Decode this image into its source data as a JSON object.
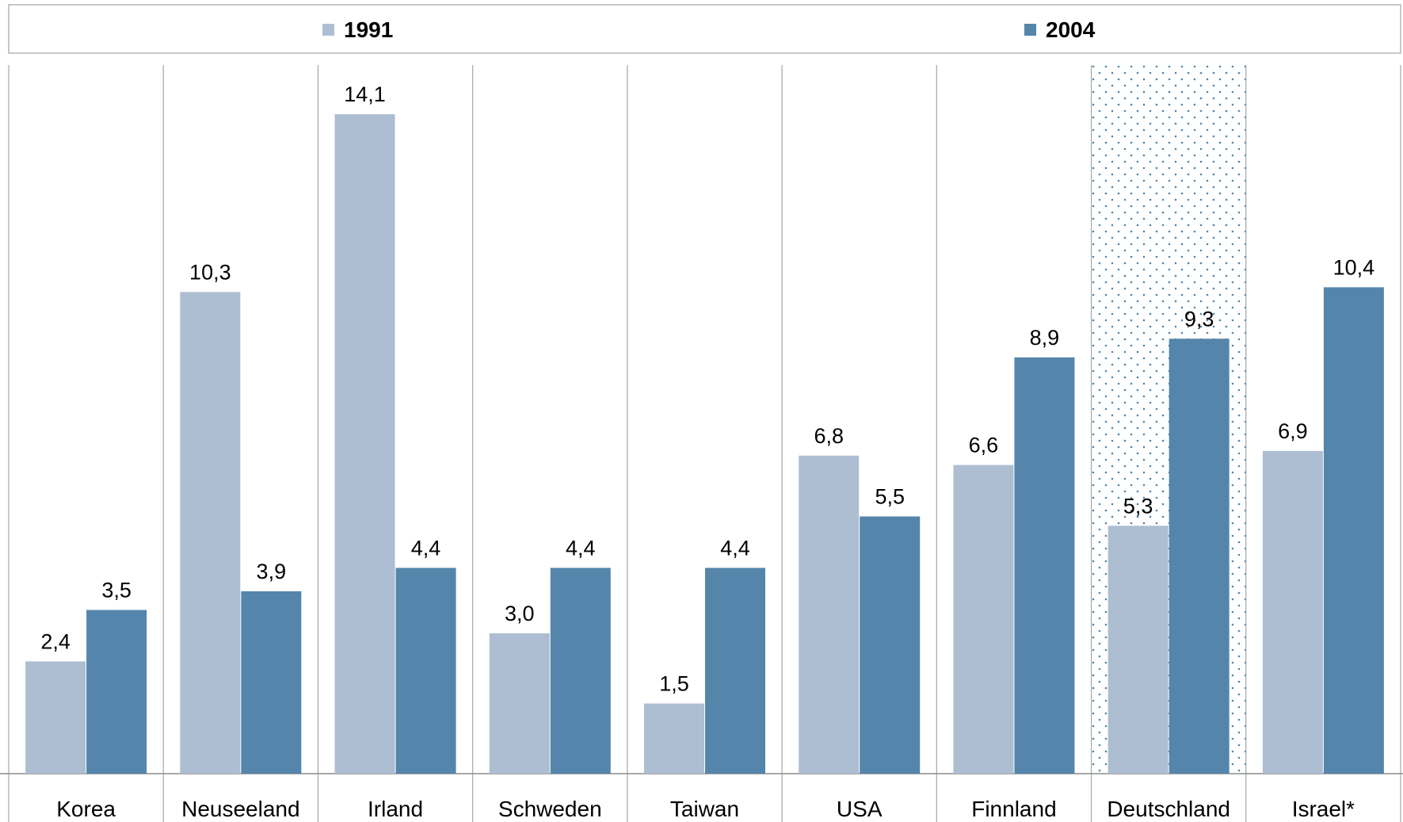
{
  "chart_data": {
    "type": "bar",
    "categories": [
      "Korea",
      "Neuseeland",
      "Irland",
      "Schweden",
      "Taiwan",
      "USA",
      "Finnland",
      "Deutschland",
      "Israel*"
    ],
    "series": [
      {
        "name": "1991",
        "color": "#adbed3",
        "values": [
          2.4,
          10.3,
          14.1,
          3.0,
          1.5,
          6.8,
          6.6,
          5.3,
          6.9
        ],
        "labels": [
          "2,4",
          "10,3",
          "14,1",
          "3,0",
          "1,5",
          "6,8",
          "6,6",
          "5,3",
          "6,9"
        ]
      },
      {
        "name": "2004",
        "color": "#5585ab",
        "values": [
          3.5,
          3.9,
          4.4,
          4.4,
          4.4,
          5.5,
          8.9,
          9.3,
          10.4
        ],
        "labels": [
          "3,5",
          "3,9",
          "4,4",
          "4,4",
          "4,4",
          "5,5",
          "8,9",
          "9,3",
          "10,4"
        ]
      }
    ],
    "legend_position": "top",
    "highlighted_category": "Deutschland",
    "ylim": [
      0,
      15
    ],
    "grid": false
  }
}
